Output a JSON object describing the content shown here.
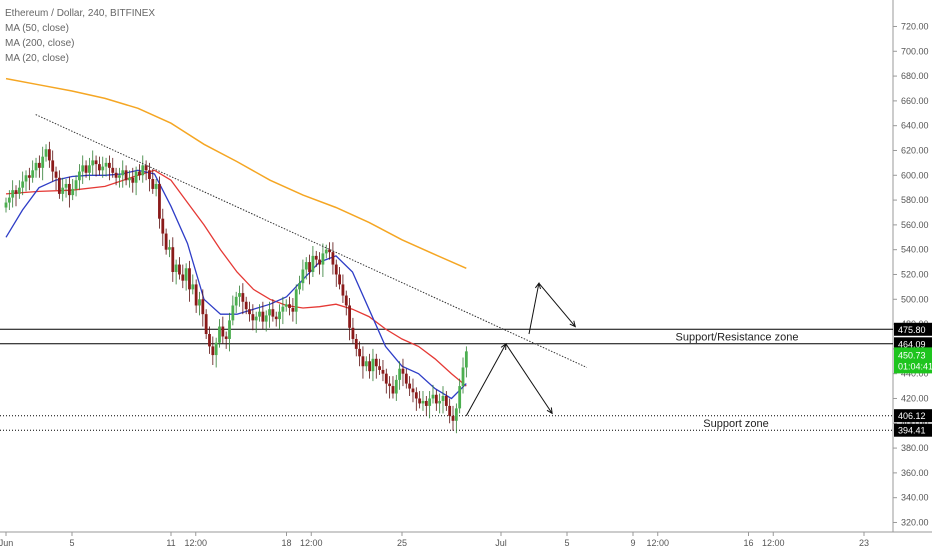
{
  "legend": {
    "title": "Ethereum / Dollar, 240, BITFINEX",
    "items": [
      "MA (50, close)",
      "MA (200, close)",
      "MA (20, close)"
    ]
  },
  "colors": {
    "bull": "#4caf50",
    "bear": "#8b1a1a",
    "ma20": "#2e3dc7",
    "ma50": "#e53935",
    "ma200": "#f5a623",
    "current_tag": "#1ec41e",
    "level_tag": "#000000"
  },
  "chart_data": {
    "type": "candlestick",
    "title": "Ethereum / Dollar, 240, BITFINEX",
    "ylim": [
      310,
      730
    ],
    "y_ticks": [
      320,
      340,
      360,
      380,
      400,
      420,
      440,
      460,
      480,
      500,
      520,
      540,
      560,
      580,
      600,
      620,
      640,
      660,
      680,
      700,
      720
    ],
    "x_ticks": [
      {
        "label": "Jun",
        "day": 0
      },
      {
        "label": "5",
        "day": 4
      },
      {
        "label": "11",
        "day": 10
      },
      {
        "label": "12:00",
        "day": 11.5
      },
      {
        "label": "18",
        "day": 17
      },
      {
        "label": "12:00",
        "day": 18.5
      },
      {
        "label": "25",
        "day": 24
      },
      {
        "label": "Jul",
        "day": 30
      },
      {
        "label": "5",
        "day": 34
      },
      {
        "label": "9",
        "day": 38
      },
      {
        "label": "12:00",
        "day": 39.5
      },
      {
        "label": "16",
        "day": 45
      },
      {
        "label": "12:00",
        "day": 46.5
      },
      {
        "label": "23",
        "day": 52
      }
    ],
    "xlim_days": [
      -0.1,
      53.7
    ],
    "candles_close": [
      578,
      582,
      588,
      585,
      590,
      595,
      600,
      598,
      604,
      610,
      606,
      615,
      621,
      612,
      603,
      598,
      585,
      590,
      593,
      584,
      589,
      596,
      603,
      608,
      602,
      608,
      612,
      609,
      604,
      607,
      610,
      606,
      602,
      598,
      600,
      604,
      596,
      598,
      594,
      603,
      600,
      608,
      604,
      597,
      589,
      593,
      565,
      553,
      540,
      542,
      522,
      528,
      520,
      515,
      525,
      508,
      512,
      495,
      500,
      488,
      472,
      462,
      455,
      465,
      478,
      470,
      468,
      483,
      495,
      502,
      505,
      498,
      492,
      488,
      483,
      486,
      490,
      482,
      487,
      492,
      486,
      484,
      490,
      494,
      496,
      493,
      490,
      508,
      513,
      524,
      530,
      522,
      535,
      532,
      528,
      537,
      540,
      538,
      528,
      520,
      512,
      503,
      495,
      477,
      468,
      460,
      454,
      446,
      450,
      442,
      452,
      446,
      443,
      440,
      432,
      430,
      424,
      435,
      444,
      440,
      432,
      428,
      425,
      420,
      416,
      418,
      414,
      420,
      423,
      416,
      418,
      422,
      414,
      406,
      402,
      412,
      430,
      445,
      458
    ],
    "current_price": "450.73",
    "countdown": "01:04:41",
    "levels": [
      {
        "value": 475.8,
        "label": "475.80",
        "style": "solid"
      },
      {
        "value": 464.09,
        "label": "464.09",
        "style": "solid"
      },
      {
        "value": 406.12,
        "label": "406.12",
        "style": "dotted"
      },
      {
        "value": 394.41,
        "label": "394.41",
        "style": "dotted"
      }
    ],
    "zones": [
      {
        "label": "Support/Resistance zone",
        "y": 469.9
      },
      {
        "label": "Support zone",
        "y": 400.3
      }
    ],
    "trendline": {
      "from": {
        "day": 1.8,
        "price": 649
      },
      "to": {
        "day": 35.2,
        "price": 445
      }
    },
    "ma200": [
      [
        0,
        678
      ],
      [
        2,
        673
      ],
      [
        4,
        668
      ],
      [
        6,
        662
      ],
      [
        8,
        654
      ],
      [
        10,
        642
      ],
      [
        12,
        625
      ],
      [
        14,
        611
      ],
      [
        16,
        596
      ],
      [
        18,
        584
      ],
      [
        20,
        574
      ],
      [
        22,
        562
      ],
      [
        24,
        548
      ],
      [
        26,
        536
      ],
      [
        27.9,
        525
      ]
    ],
    "ma50": [
      [
        0,
        585
      ],
      [
        2,
        587
      ],
      [
        4,
        588
      ],
      [
        6,
        591
      ],
      [
        8,
        600
      ],
      [
        9,
        604
      ],
      [
        10,
        596
      ],
      [
        11,
        578
      ],
      [
        12,
        560
      ],
      [
        13,
        540
      ],
      [
        14,
        522
      ],
      [
        15,
        508
      ],
      [
        16,
        500
      ],
      [
        17,
        495
      ],
      [
        18,
        493
      ],
      [
        19,
        494
      ],
      [
        20,
        496
      ],
      [
        21,
        492
      ],
      [
        22,
        486
      ],
      [
        23,
        476
      ],
      [
        24,
        468
      ],
      [
        25,
        462
      ],
      [
        26,
        452
      ],
      [
        27,
        440
      ],
      [
        27.9,
        430
      ]
    ],
    "ma20": [
      [
        0,
        550
      ],
      [
        1,
        572
      ],
      [
        2,
        590
      ],
      [
        3,
        596
      ],
      [
        4,
        599
      ],
      [
        5,
        600
      ],
      [
        6,
        600
      ],
      [
        7,
        601
      ],
      [
        8,
        604
      ],
      [
        9,
        601
      ],
      [
        10,
        575
      ],
      [
        11,
        545
      ],
      [
        12,
        500
      ],
      [
        13,
        488
      ],
      [
        14,
        488
      ],
      [
        15,
        492
      ],
      [
        16,
        496
      ],
      [
        17,
        502
      ],
      [
        18,
        516
      ],
      [
        19,
        530
      ],
      [
        20,
        535
      ],
      [
        21,
        522
      ],
      [
        22,
        492
      ],
      [
        23,
        462
      ],
      [
        24,
        446
      ],
      [
        25,
        440
      ],
      [
        26,
        428
      ],
      [
        27,
        420
      ],
      [
        27.9,
        432
      ]
    ],
    "projection": [
      [
        27.9,
        406
      ],
      [
        30.3,
        464
      ],
      [
        32.3,
        513
      ],
      [
        34.5,
        478
      ]
    ],
    "alt_projection": [
      [
        30.3,
        464
      ],
      [
        33.1,
        408
      ]
    ]
  }
}
